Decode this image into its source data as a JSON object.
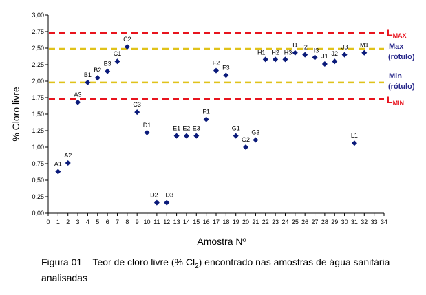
{
  "chart_data": {
    "type": "scatter",
    "xlabel": "Amostra Nº",
    "ylabel": "% Cloro livre",
    "xlim": [
      0,
      34
    ],
    "ylim": [
      0,
      3
    ],
    "x_ticks": [
      "0",
      "1",
      "2",
      "3",
      "4",
      "5",
      "6",
      "7",
      "8",
      "9",
      "10",
      "11",
      "12",
      "13",
      "14",
      "15",
      "16",
      "17",
      "18",
      "19",
      "20",
      "21",
      "22",
      "23",
      "24",
      "25",
      "26",
      "27",
      "28",
      "29",
      "30",
      "31",
      "32",
      "33",
      "34"
    ],
    "y_ticks": [
      {
        "value": 0.0,
        "label": "0,00"
      },
      {
        "value": 0.25,
        "label": "0,25"
      },
      {
        "value": 0.5,
        "label": "0,50"
      },
      {
        "value": 0.75,
        "label": "0,75"
      },
      {
        "value": 1.0,
        "label": "1,00"
      },
      {
        "value": 1.25,
        "label": "1,25"
      },
      {
        "value": 1.5,
        "label": "1,50"
      },
      {
        "value": 1.75,
        "label": "1,75"
      },
      {
        "value": 2.0,
        "label": "2,00"
      },
      {
        "value": 2.25,
        "label": "2,25"
      },
      {
        "value": 2.5,
        "label": "2,50"
      },
      {
        "value": 2.75,
        "label": "2,75"
      },
      {
        "value": 3.0,
        "label": "3,00"
      }
    ],
    "grid": false,
    "marker_color": "#0a1a7a",
    "points": [
      {
        "label": "A1",
        "x": 1,
        "y": 0.63
      },
      {
        "label": "A2",
        "x": 2,
        "y": 0.76
      },
      {
        "label": "A3",
        "x": 3,
        "y": 1.68
      },
      {
        "label": "B1",
        "x": 4,
        "y": 1.98
      },
      {
        "label": "B2",
        "x": 5,
        "y": 2.05
      },
      {
        "label": "B3",
        "x": 6,
        "y": 2.15
      },
      {
        "label": "C1",
        "x": 7,
        "y": 2.3
      },
      {
        "label": "C2",
        "x": 8,
        "y": 2.52
      },
      {
        "label": "C3",
        "x": 9,
        "y": 1.53
      },
      {
        "label": "D1",
        "x": 10,
        "y": 1.22
      },
      {
        "label": "D2",
        "x": 11,
        "y": 0.16
      },
      {
        "label": "D3",
        "x": 12,
        "y": 0.16
      },
      {
        "label": "E1",
        "x": 13,
        "y": 1.17
      },
      {
        "label": "E2",
        "x": 14,
        "y": 1.17
      },
      {
        "label": "E3",
        "x": 15,
        "y": 1.17
      },
      {
        "label": "F1",
        "x": 16,
        "y": 1.42
      },
      {
        "label": "F2",
        "x": 17,
        "y": 2.16
      },
      {
        "label": "F3",
        "x": 18,
        "y": 2.09
      },
      {
        "label": "G1",
        "x": 19,
        "y": 1.17
      },
      {
        "label": "G2",
        "x": 20,
        "y": 1.0
      },
      {
        "label": "G3",
        "x": 21,
        "y": 1.11
      },
      {
        "label": "H1",
        "x": 22,
        "y": 2.33
      },
      {
        "label": "H2",
        "x": 23,
        "y": 2.33
      },
      {
        "label": "H3",
        "x": 24,
        "y": 2.33
      },
      {
        "label": "I1",
        "x": 25,
        "y": 2.43
      },
      {
        "label": "I2",
        "x": 26,
        "y": 2.4
      },
      {
        "label": "I3",
        "x": 27,
        "y": 2.36
      },
      {
        "label": "J1",
        "x": 28,
        "y": 2.26
      },
      {
        "label": "J2",
        "x": 29,
        "y": 2.3
      },
      {
        "label": "J3",
        "x": 30,
        "y": 2.4
      },
      {
        "label": "L1",
        "x": 31,
        "y": 1.06
      },
      {
        "label": "M1",
        "x": 32,
        "y": 2.43
      }
    ],
    "reference_lines": [
      {
        "y": 2.73,
        "color": "#e8141e",
        "style": "dashed",
        "label": "L",
        "sub": "MAX"
      },
      {
        "y": 2.49,
        "color": "#e0c21a",
        "style": "dashed",
        "label": "Max (rótulo)"
      },
      {
        "y": 1.98,
        "color": "#e0c21a",
        "style": "dashed",
        "label": "Min (rótulo)"
      },
      {
        "y": 1.73,
        "color": "#e8141e",
        "style": "dashed",
        "label": "L",
        "sub": "MIN"
      }
    ]
  },
  "caption": {
    "text_before": "Figura 01 – Teor de cloro livre (% Cl",
    "subscript": "2",
    "text_after": ") encontrado nas amostras de água sanitária analisadas"
  }
}
